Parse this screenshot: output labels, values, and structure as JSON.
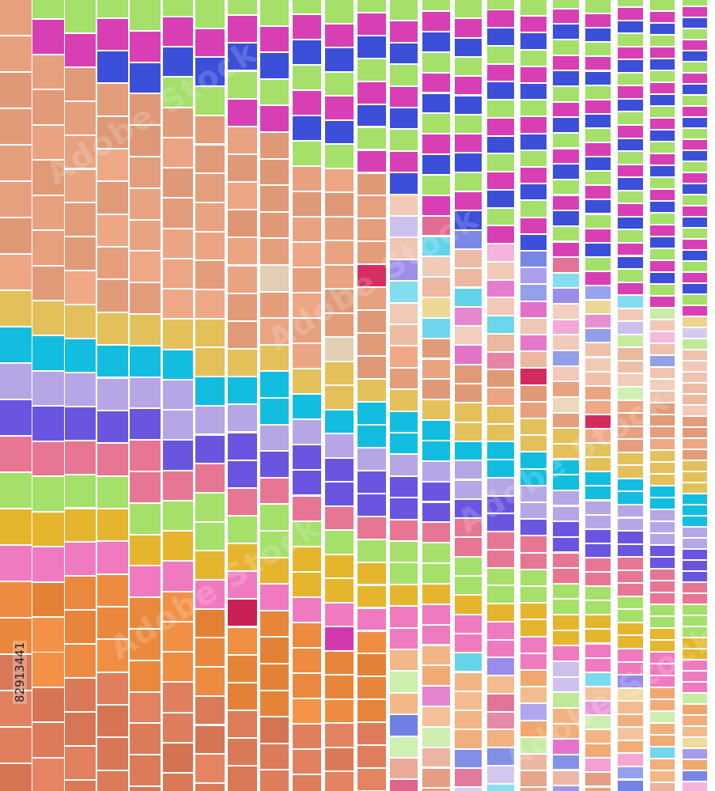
{
  "stock_id": "82913441",
  "watermark_text": "Adobe Stock",
  "palette": {
    "terracotta": "#dc7c5a",
    "salmon": "#e6a07e",
    "peach": "#e9a882",
    "orange": "#eb8a3f",
    "magenta": "#d83fb5",
    "lime": "#a4e06a",
    "royal_blue": "#3b4fd9",
    "mustard": "#e3c05a",
    "cyan": "#13bde0",
    "lavender": "#b7a6e6",
    "violet": "#6a55e0",
    "rose": "#e67694",
    "pink": "#f07ac0",
    "amber": "#e5b52e",
    "crimson": "#d22a5f",
    "cream": "#e2cfb4"
  }
}
